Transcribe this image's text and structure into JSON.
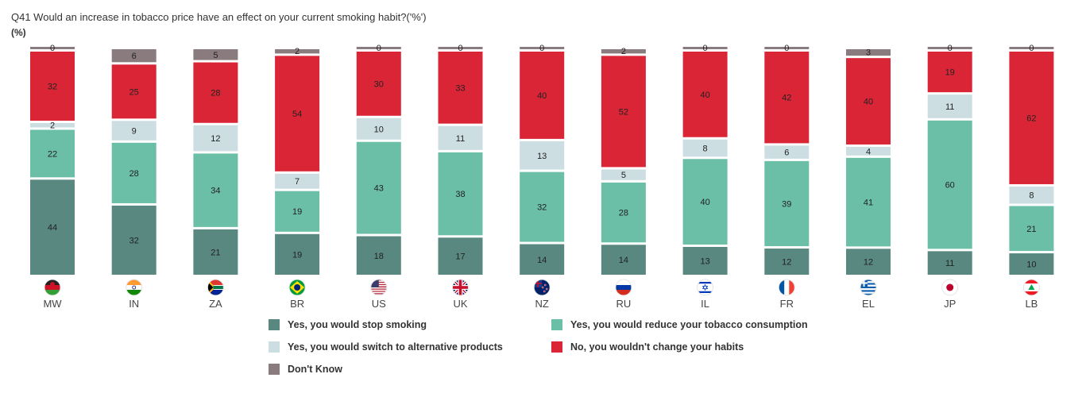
{
  "chart_data": {
    "type": "bar",
    "stacked": true,
    "title": "Q41 Would an increase in tobacco price have an effect on your current smoking habit?('%')",
    "unit_label": "(%)",
    "categories": [
      "MW",
      "IN",
      "ZA",
      "BR",
      "US",
      "UK",
      "NZ",
      "RU",
      "IL",
      "FR",
      "EL",
      "JP",
      "LB"
    ],
    "ylim": [
      0,
      100
    ],
    "legend_position": "bottom",
    "series": [
      {
        "name": "Yes, you would stop smoking",
        "color": "#58887f",
        "values": [
          44,
          32,
          21,
          19,
          18,
          17,
          14,
          14,
          13,
          12,
          12,
          11,
          10
        ]
      },
      {
        "name": "Yes, you would reduce your tobacco consumption",
        "color": "#6bbfa7",
        "values": [
          22,
          28,
          34,
          19,
          43,
          38,
          32,
          28,
          40,
          39,
          41,
          60,
          21
        ]
      },
      {
        "name": "Yes, you would switch to alternative products",
        "color": "#ccdee2",
        "values": [
          2,
          9,
          12,
          7,
          10,
          11,
          13,
          5,
          8,
          6,
          4,
          11,
          8
        ]
      },
      {
        "name": "No, you wouldn't change your habits",
        "color": "#da2537",
        "values": [
          32,
          25,
          28,
          54,
          30,
          33,
          40,
          52,
          40,
          42,
          40,
          19,
          62
        ]
      },
      {
        "name": "Don't Know",
        "color": "#8a7b7e",
        "values": [
          0,
          6,
          5,
          2,
          0,
          0,
          0,
          2,
          0,
          0,
          3,
          0,
          0
        ]
      }
    ],
    "legend_order": [
      0,
      1,
      2,
      3,
      4
    ],
    "flag_icons": [
      "malawi-flag-icon",
      "india-flag-icon",
      "south-africa-flag-icon",
      "brazil-flag-icon",
      "usa-flag-icon",
      "uk-flag-icon",
      "new-zealand-flag-icon",
      "russia-flag-icon",
      "israel-flag-icon",
      "france-flag-icon",
      "greece-flag-icon",
      "japan-flag-icon",
      "lebanon-flag-icon"
    ]
  }
}
